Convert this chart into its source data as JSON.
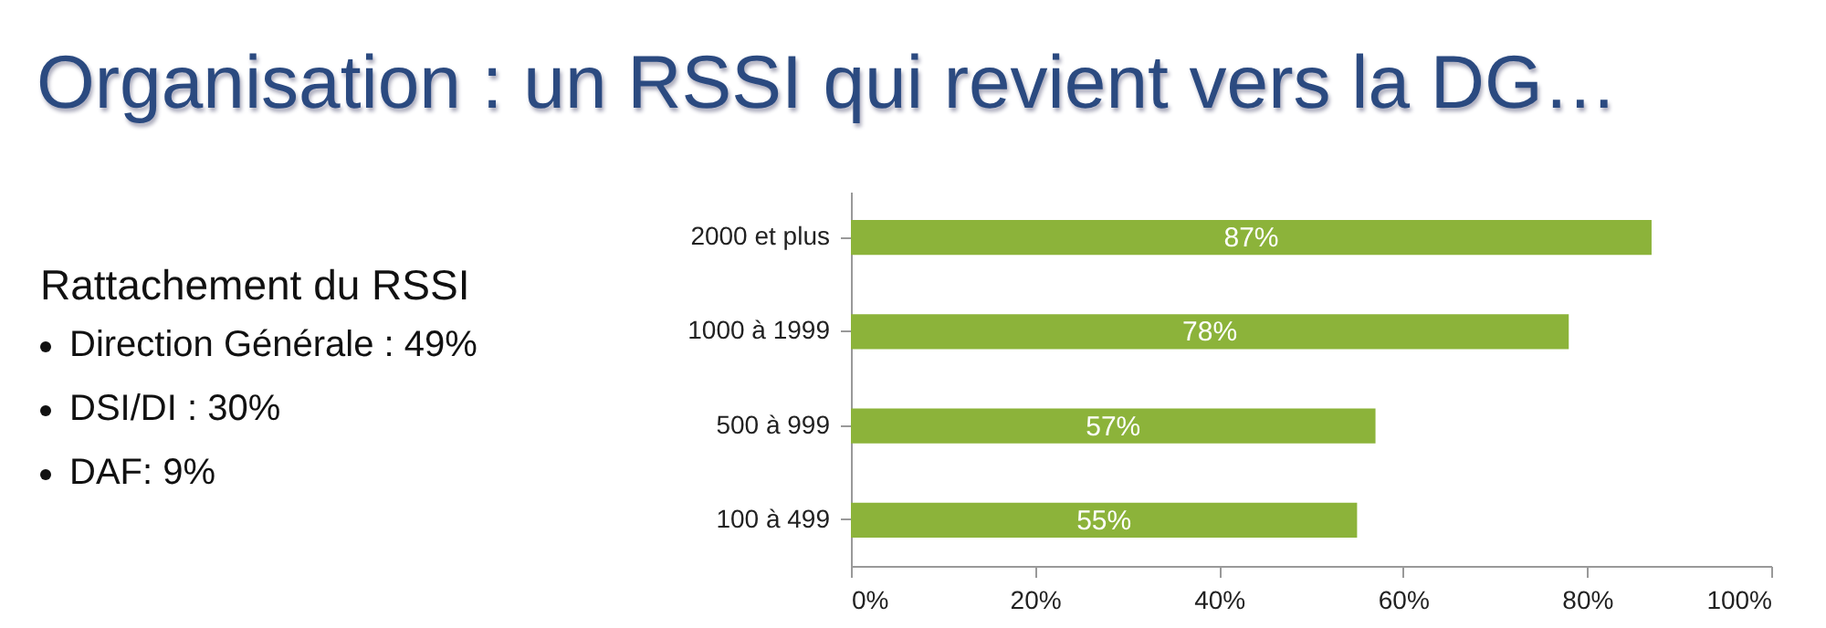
{
  "chart_data": {
    "type": "bar",
    "orientation": "horizontal",
    "title": "Organisation : un RSSI qui revient vers la DG…",
    "annotations": [
      "Rattachement du RSSI",
      "Direction Générale : 49%",
      "DSI/DI : 30%",
      "DAF: 9%"
    ],
    "categories": [
      "2000 et plus",
      "1000 à 1999",
      "500 à 999",
      "100 à 499"
    ],
    "values": [
      87,
      78,
      57,
      55
    ],
    "value_labels": [
      "87%",
      "78%",
      "57%",
      "55%"
    ],
    "color": "#8cb33a",
    "xlim": [
      0,
      100
    ],
    "xticks": [
      {
        "value": 0,
        "label": "0%"
      },
      {
        "value": 20,
        "label": "20%"
      },
      {
        "value": 40,
        "label": "40%"
      },
      {
        "value": 60,
        "label": "60%"
      },
      {
        "value": 80,
        "label": "80%"
      },
      {
        "value": 100,
        "label": "100%"
      }
    ],
    "grid": false
  }
}
